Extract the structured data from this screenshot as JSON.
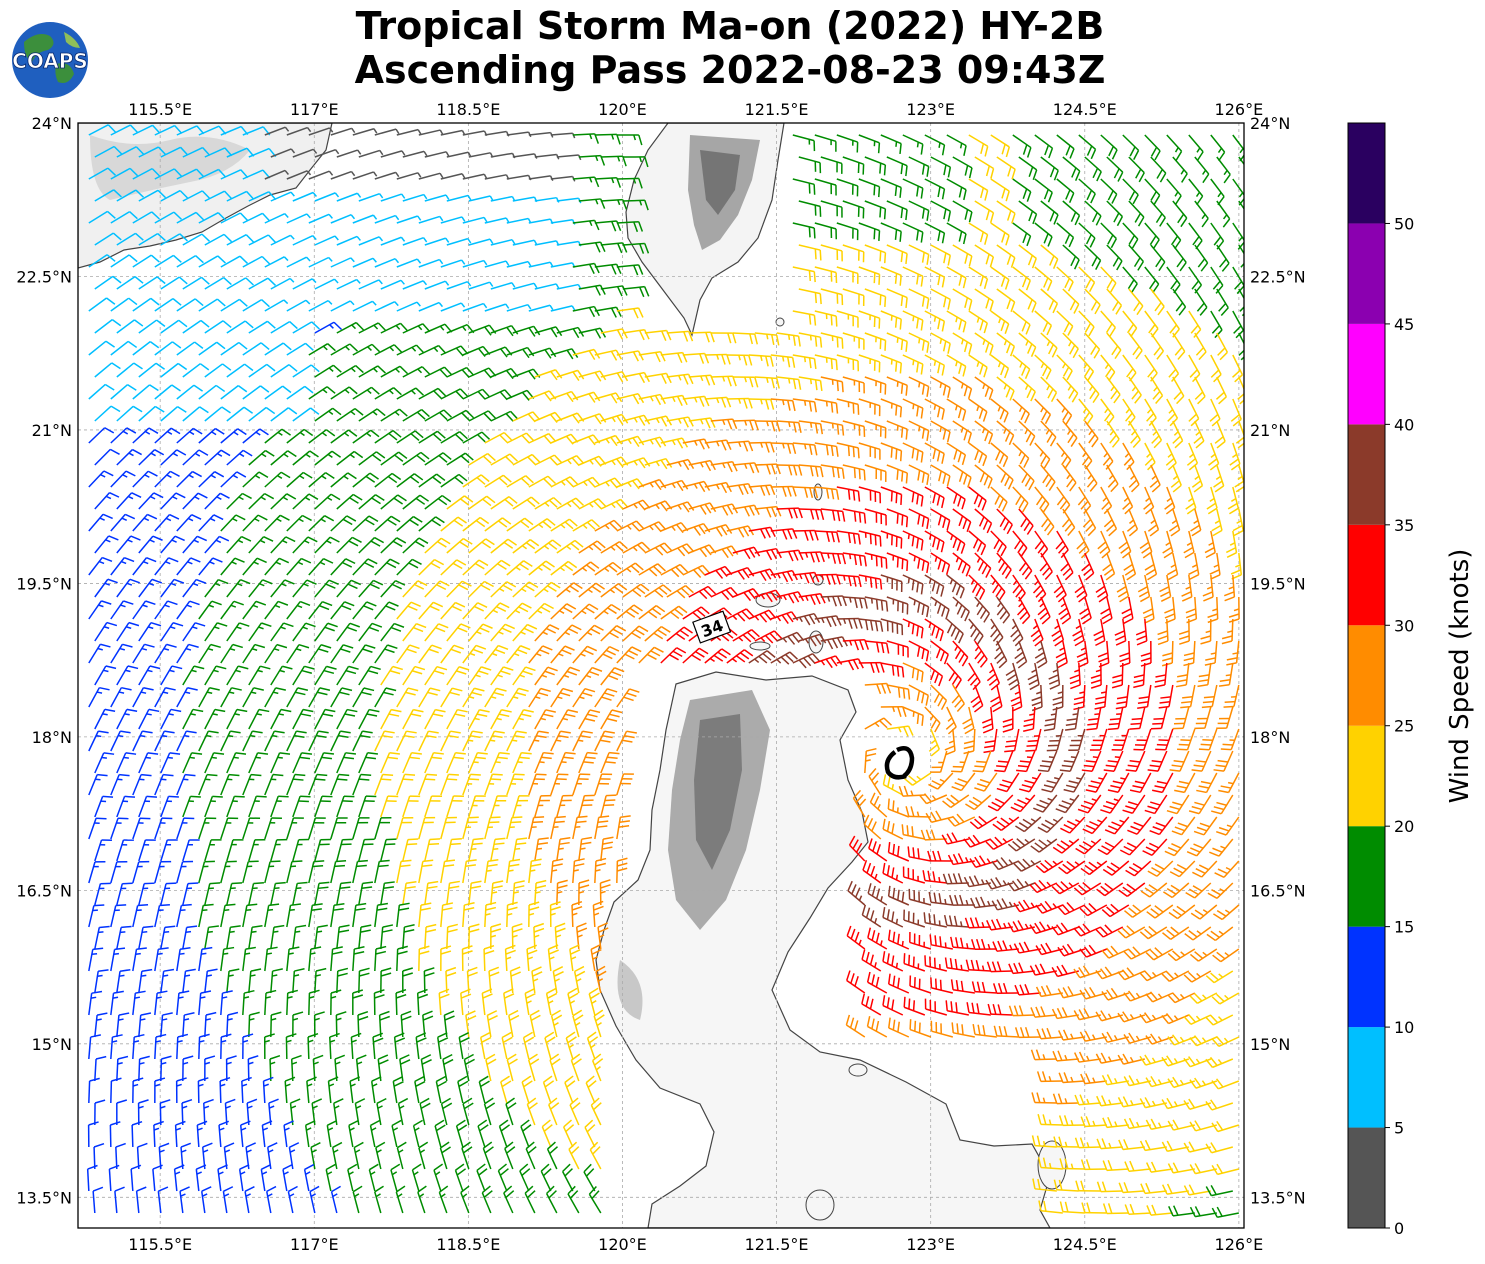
{
  "title": {
    "line1": "Tropical Storm Ma-on (2022) HY-2B",
    "line2": "Ascending Pass 2022-08-23 09:43Z"
  },
  "logo": {
    "text": "COAPS",
    "icon": "globe-logo-icon"
  },
  "axes": {
    "lon_labels": [
      "115.5°E",
      "117°E",
      "118.5°E",
      "120°E",
      "121.5°E",
      "123°E",
      "124.5°E",
      "126°E"
    ],
    "lat_labels": [
      "24°N",
      "22.5°N",
      "21°N",
      "19.5°N",
      "18°N",
      "16.5°N",
      "15°N",
      "13.5°N"
    ],
    "lon_values": [
      115.5,
      117,
      118.5,
      120,
      121.5,
      123,
      124.5,
      126
    ],
    "lat_values": [
      24,
      22.5,
      21,
      19.5,
      18,
      16.5,
      15,
      13.5
    ],
    "lon_range": [
      114.7,
      126.05
    ],
    "lat_range": [
      13.2,
      24
    ],
    "grid": true
  },
  "colorbar": {
    "title": "Wind Speed (knots)",
    "tick_labels": [
      "0",
      "5",
      "10",
      "15",
      "20",
      "25",
      "30",
      "35",
      "40",
      "45",
      "50"
    ],
    "bins": [
      {
        "min": 0,
        "max": 5,
        "color": "#555555"
      },
      {
        "min": 5,
        "max": 10,
        "color": "#00bfff"
      },
      {
        "min": 10,
        "max": 15,
        "color": "#0033ff"
      },
      {
        "min": 15,
        "max": 20,
        "color": "#008c00"
      },
      {
        "min": 20,
        "max": 25,
        "color": "#ffd200"
      },
      {
        "min": 25,
        "max": 30,
        "color": "#ff8c00"
      },
      {
        "min": 30,
        "max": 35,
        "color": "#ff0000"
      },
      {
        "min": 35,
        "max": 40,
        "color": "#8b3a2a"
      },
      {
        "min": 40,
        "max": 45,
        "color": "#ff00ff"
      },
      {
        "min": 45,
        "max": 50,
        "color": "#8b00b0"
      },
      {
        "min": 50,
        "max": 55,
        "color": "#2a0060"
      }
    ]
  },
  "annotations": {
    "wind_radius_label": "34",
    "storm_center_lon": 122.75,
    "storm_center_lat": 17.8,
    "storm_symbol": "tropical-storm-icon"
  },
  "wind_field": {
    "center_lon": 122.75,
    "center_lat": 17.8,
    "units": "knots"
  },
  "land": {
    "color": "#ffffff",
    "terrain_color": "#888888",
    "coast_color": "#444444"
  }
}
